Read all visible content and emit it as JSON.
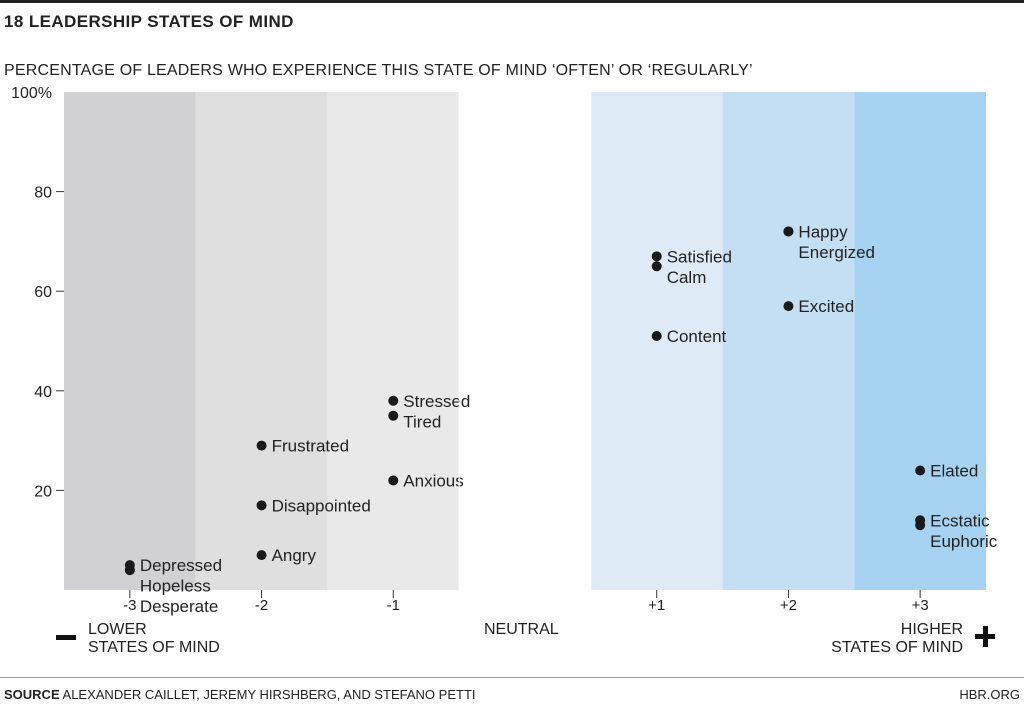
{
  "title": "18 LEADERSHIP STATES OF MIND",
  "subtitle": "PERCENTAGE OF LEADERS WHO EXPERIENCE THIS STATE OF MIND ‘OFTEN’ OR ‘REGULARLY’",
  "axis_captions": {
    "lower_line1": "LOWER",
    "lower_line2": "STATES OF MIND",
    "neutral": "NEUTRAL",
    "higher_line1": "HIGHER",
    "higher_line2": "STATES OF MIND"
  },
  "footer": {
    "source_label": "SOURCE",
    "source_text": " ALEXANDER CAILLET, JEREMY HIRSHBERG, AND STEFANO PETTI",
    "credit": "HBR.ORG"
  },
  "chart_data": {
    "type": "scatter",
    "title": "18 LEADERSHIP STATES OF MIND",
    "subtitle": "PERCENTAGE OF LEADERS WHO EXPERIENCE THIS STATE OF MIND ‘OFTEN’ OR ‘REGULARLY’",
    "xlim": [
      -3.5,
      3.5
    ],
    "ylim": [
      0,
      100
    ],
    "x_ticks": [
      {
        "pos": -3,
        "label": "-3"
      },
      {
        "pos": -2,
        "label": "-2"
      },
      {
        "pos": -1,
        "label": "-1"
      },
      {
        "pos": 1,
        "label": "+1"
      },
      {
        "pos": 2,
        "label": "+2"
      },
      {
        "pos": 3,
        "label": "+3"
      }
    ],
    "y_ticks": [
      {
        "value": 20,
        "label": "20"
      },
      {
        "value": 40,
        "label": "40"
      },
      {
        "value": 60,
        "label": "60"
      },
      {
        "value": 80,
        "label": "80"
      },
      {
        "value": 100,
        "label": "100%"
      }
    ],
    "grid": false,
    "bands": [
      {
        "from": -3.5,
        "to": -2.5,
        "color": "#d1d1d3"
      },
      {
        "from": -2.5,
        "to": -1.5,
        "color": "#dfdfe0"
      },
      {
        "from": -1.5,
        "to": -0.5,
        "color": "#e9e9ea"
      },
      {
        "from": 0.5,
        "to": 1.5,
        "color": "#deebf7"
      },
      {
        "from": 1.5,
        "to": 2.5,
        "color": "#c4dff4"
      },
      {
        "from": 2.5,
        "to": 3.5,
        "color": "#a6d3f1"
      }
    ],
    "points": [
      {
        "label": "Depressed",
        "x": -3,
        "y": 5
      },
      {
        "label": "Hopeless",
        "x": -3,
        "y": 4
      },
      {
        "label": "Desperate",
        "x": -3,
        "y": 4
      },
      {
        "label": "Frustrated",
        "x": -2,
        "y": 29
      },
      {
        "label": "Disappointed",
        "x": -2,
        "y": 17
      },
      {
        "label": "Angry",
        "x": -2,
        "y": 7
      },
      {
        "label": "Stressed",
        "x": -1,
        "y": 38
      },
      {
        "label": "Tired",
        "x": -1,
        "y": 35
      },
      {
        "label": "Anxious",
        "x": -1,
        "y": 22
      },
      {
        "label": "Satisfied",
        "x": 1,
        "y": 67
      },
      {
        "label": "Calm",
        "x": 1,
        "y": 65
      },
      {
        "label": "Content",
        "x": 1,
        "y": 51
      },
      {
        "label": "Happy",
        "x": 2,
        "y": 72
      },
      {
        "label": "Energized",
        "x": 2,
        "y": 72
      },
      {
        "label": "Excited",
        "x": 2,
        "y": 57
      },
      {
        "label": "Elated",
        "x": 3,
        "y": 24
      },
      {
        "label": "Ecstatic",
        "x": 3,
        "y": 14
      },
      {
        "label": "Euphoric",
        "x": 3,
        "y": 13
      }
    ]
  }
}
